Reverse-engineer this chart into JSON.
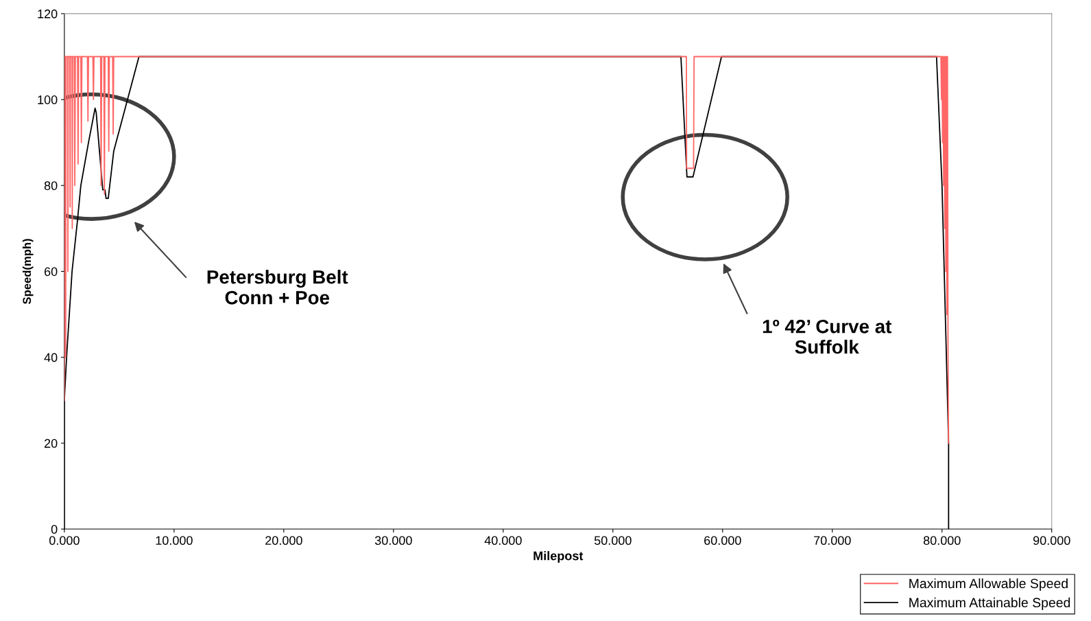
{
  "chart_data": {
    "type": "line",
    "xlabel": "Milepost",
    "ylabel": "Speed(mph)",
    "xlim": [
      0,
      90
    ],
    "ylim": [
      0,
      120
    ],
    "xticks": [
      {
        "value": 0,
        "label": "0.000"
      },
      {
        "value": 10,
        "label": "10.000"
      },
      {
        "value": 20,
        "label": "20.000"
      },
      {
        "value": 30,
        "label": "30.000"
      },
      {
        "value": 40,
        "label": "40.000"
      },
      {
        "value": 50,
        "label": "50.000"
      },
      {
        "value": 60,
        "label": "60.000"
      },
      {
        "value": 70,
        "label": "70.000"
      },
      {
        "value": 80,
        "label": "80.000"
      },
      {
        "value": 90,
        "label": "90.000"
      }
    ],
    "yticks": [
      0,
      20,
      40,
      60,
      80,
      100,
      120
    ],
    "grid": false,
    "legend": "bottom right",
    "marker": "none",
    "line_style": "solid",
    "series": [
      {
        "name": "Maximum Allowable Speed",
        "color": "#ff6666",
        "x": [
          0,
          0.05,
          0.1,
          0.12,
          0.15,
          0.3,
          0.32,
          0.35,
          0.5,
          0.52,
          0.55,
          0.7,
          0.72,
          0.75,
          0.9,
          0.95,
          1.0,
          1.2,
          1.25,
          1.3,
          1.5,
          1.55,
          1.6,
          2.1,
          2.15,
          2.2,
          2.6,
          2.65,
          2.7,
          3.3,
          3.35,
          3.4,
          3.6,
          3.65,
          3.7,
          4.0,
          4.05,
          4.1,
          4.4,
          4.45,
          4.5,
          56.7,
          56.72,
          57.35,
          57.4,
          79.9,
          79.95,
          80.0,
          80.05,
          80.1,
          80.15,
          80.2,
          80.25,
          80.3,
          80.35,
          80.4,
          80.45,
          80.5,
          80.55,
          80.6
        ],
        "values": [
          30,
          110,
          110,
          40,
          110,
          110,
          60,
          110,
          110,
          75,
          110,
          110,
          70,
          110,
          110,
          80,
          110,
          110,
          85,
          110,
          110,
          90,
          110,
          110,
          95,
          110,
          110,
          100,
          110,
          110,
          80,
          110,
          110,
          78,
          110,
          110,
          88,
          110,
          110,
          92,
          110,
          110,
          84,
          84,
          110,
          110,
          100,
          110,
          90,
          110,
          80,
          110,
          70,
          110,
          60,
          110,
          50,
          110,
          40,
          20
        ]
      },
      {
        "name": "Maximum Attainable Speed",
        "color": "#000000",
        "x": [
          0,
          0,
          0.2,
          0.7,
          1.2,
          1.5,
          2.2,
          2.8,
          2.9,
          3.5,
          3.7,
          3.8,
          4.0,
          4.5,
          6.8,
          56.2,
          56.75,
          57.3,
          59.9,
          79.5,
          80.0,
          80.6,
          80.6
        ],
        "values": [
          0,
          30,
          40,
          60,
          72,
          80,
          90,
          98,
          97,
          79,
          79,
          77,
          77,
          88,
          110,
          110,
          82,
          82,
          110,
          110,
          80,
          20,
          0
        ]
      }
    ],
    "annotations": [
      "Petersburg Belt\nConn + Poe",
      "1º 42’ Curve at\nSuffolk"
    ]
  }
}
